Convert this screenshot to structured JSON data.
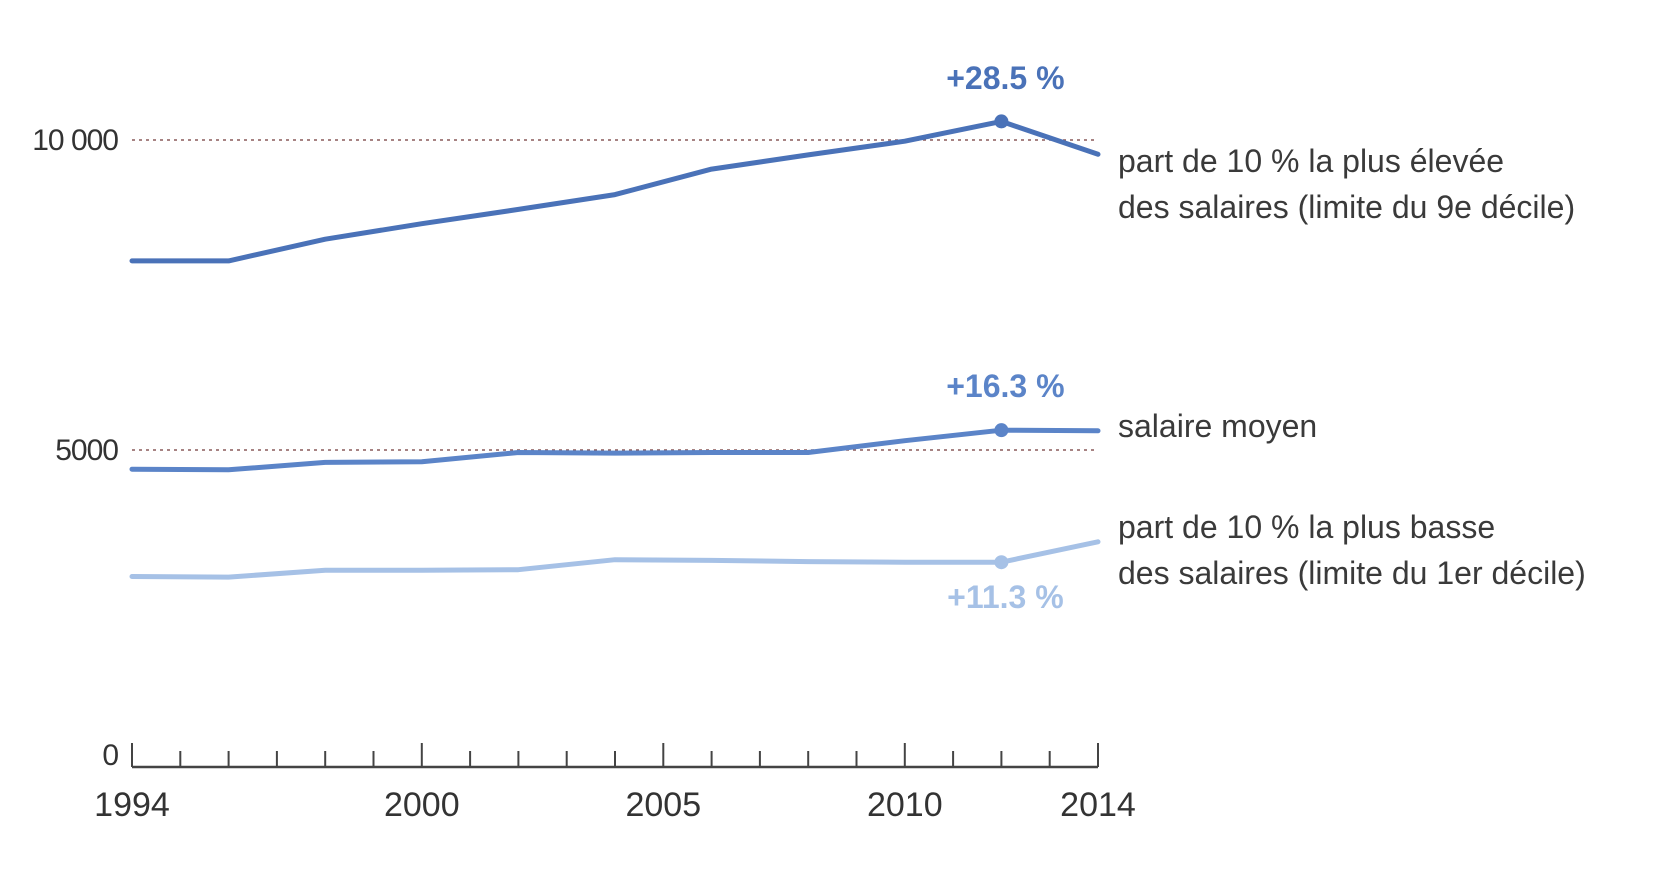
{
  "chart_data": {
    "type": "line",
    "title": "",
    "xlabel": "",
    "ylabel": "",
    "xlim": [
      1994,
      2014
    ],
    "ylim": [
      0,
      10000
    ],
    "x_ticks": [
      "1994",
      "2000",
      "2005",
      "2010",
      "2014"
    ],
    "y_ticks": [
      {
        "value": 0,
        "label": "0"
      },
      {
        "value": 5000,
        "label": "5000"
      },
      {
        "value": 10000,
        "label": "10 000"
      }
    ],
    "reference_lines": [
      5000,
      10000
    ],
    "grid": false,
    "x": [
      1994,
      1996,
      1998,
      2000,
      2002,
      2004,
      2006,
      2008,
      2010,
      2012,
      2014
    ],
    "series": [
      {
        "name_lines": [
          "part de 10 % la plus élevée",
          "des salaires (limite du 9e décile)"
        ],
        "color": "#4a72b8",
        "values": [
          8050,
          8050,
          8400,
          8650,
          8880,
          9120,
          9530,
          9760,
          9980,
          10300,
          9770
        ],
        "annotation": {
          "text": "+28.5 %",
          "x": 2012
        }
      },
      {
        "name_lines": [
          "salaire moyen"
        ],
        "color": "#5b84c8",
        "values": [
          4690,
          4680,
          4800,
          4810,
          4960,
          4950,
          4960,
          4960,
          5150,
          5320,
          5310
        ],
        "annotation": {
          "text": "+16.3 %",
          "x": 2012
        }
      },
      {
        "name_lines": [
          "part de 10 % la plus basse",
          "des salaires (limite du 1er décile)"
        ],
        "color": "#a6c1e6",
        "values": [
          2960,
          2950,
          3060,
          3060,
          3070,
          3230,
          3220,
          3200,
          3190,
          3190,
          3520
        ],
        "annotation": {
          "text": "+11.3 %",
          "x": 2012
        }
      }
    ]
  }
}
